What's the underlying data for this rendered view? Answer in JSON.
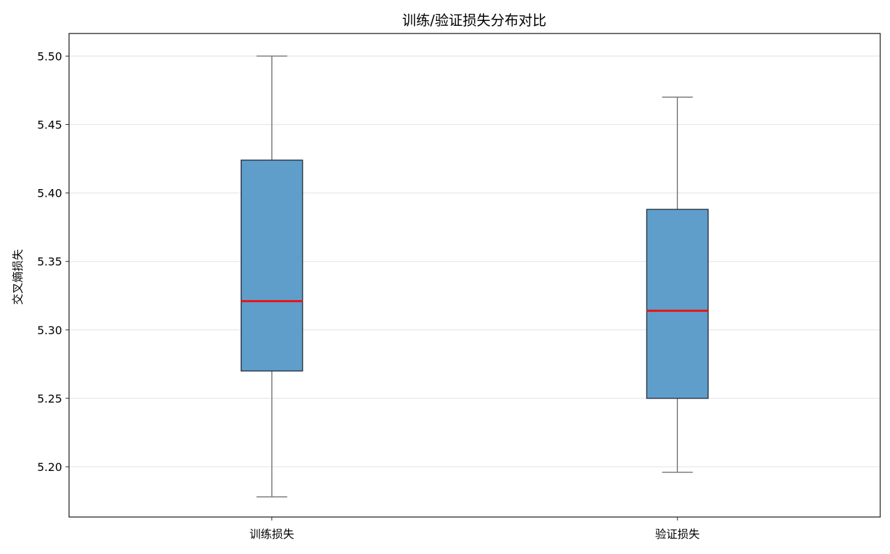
{
  "chart_data": {
    "type": "box",
    "title": "训练/验证损失分布对比",
    "xlabel": "",
    "ylabel": "交叉熵损失",
    "ylim": [
      5.1633,
      5.5165
    ],
    "yticks": [
      "5.20",
      "5.25",
      "5.30",
      "5.35",
      "5.40",
      "5.45",
      "5.50"
    ],
    "ytick_values": [
      5.2,
      5.25,
      5.3,
      5.35,
      5.4,
      5.45,
      5.5
    ],
    "grid": "y",
    "categories": [
      "训练损失",
      "验证损失"
    ],
    "boxes": [
      {
        "category": "训练损失",
        "whisker_low": 5.178,
        "q1": 5.27,
        "median": 5.321,
        "q3": 5.424,
        "whisker_high": 5.5
      },
      {
        "category": "验证损失",
        "whisker_low": 5.196,
        "q1": 5.25,
        "median": 5.314,
        "q3": 5.388,
        "whisker_high": 5.47
      }
    ],
    "colors": {
      "box_fill": "#5f9ecb",
      "box_edge": "#2b3a4a",
      "median": "#ee1111",
      "whisker": "#7a7a7a",
      "grid": "#e6e6e6",
      "axis": "#222222"
    }
  }
}
